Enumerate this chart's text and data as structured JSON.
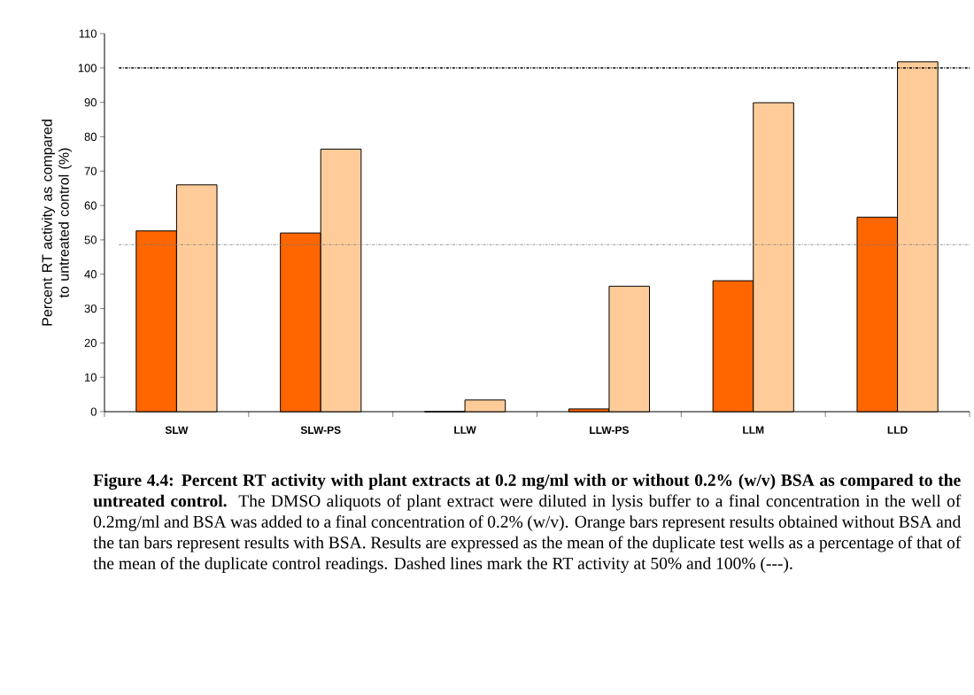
{
  "chart_data": {
    "type": "bar",
    "title": "Figure 4.4: Percent RT activity with plant extracts at 0.2 mg/ml with or without 0.2% (w/v) BSA as compared to the untreated control.",
    "ylabel": "Percent RT activity as compared to untreated control (%)",
    "categories": [
      "SLW",
      "SLW-PS",
      "LLW",
      "LLW-PS",
      "LLM",
      "LLD"
    ],
    "series": [
      {
        "color": "#ff6600",
        "values": [
          52.6,
          52.0,
          0,
          0.8,
          38.1,
          56.6
        ]
      },
      {
        "color": "#ffcc99",
        "values": [
          66.0,
          76.4,
          3.4,
          36.5,
          89.9,
          101.8
        ]
      }
    ],
    "ylim": [
      0,
      110
    ],
    "yticks": [
      0,
      10,
      20,
      30,
      40,
      50,
      60,
      70,
      80,
      90,
      100,
      110
    ],
    "ref_lines": [
      {
        "axis": "y",
        "value": 100,
        "color": "#000000",
        "line_style": "dashed"
      },
      {
        "axis": "y",
        "value": 48.6,
        "color": "#777777",
        "line_style": "dashed"
      }
    ],
    "annotations": [
      "The DMSO aliquots of plant extract were diluted in lysis buffer to a final concentration in the well of 0.2mg/ml and BSA was added to a final concentration of 0.2% (w/v).  Orange bars represent results obtained without BSA and the tan bars represent results with BSA.  Results are expressed as the mean of the duplicate test wells as a percentage of that of the mean of the duplicate control readings.  Dashed lines mark the RT activity at 50% and 100% (---)."
    ]
  }
}
